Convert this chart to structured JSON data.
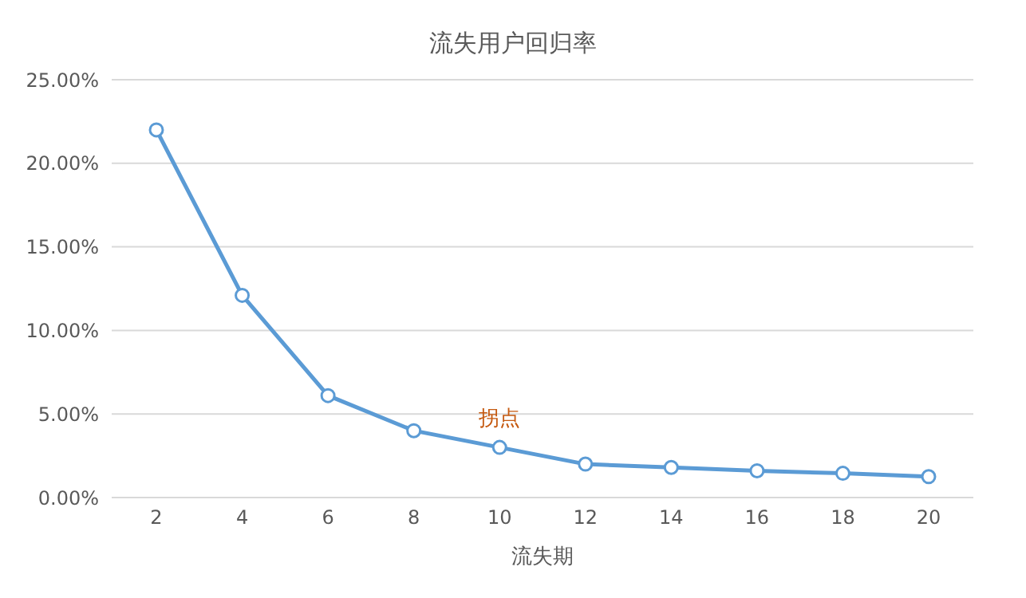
{
  "chart_data": {
    "type": "line",
    "title": "流失用户回归率",
    "xlabel": "流失期",
    "categories": [
      "2",
      "4",
      "6",
      "8",
      "10",
      "12",
      "14",
      "16",
      "18",
      "20"
    ],
    "series": [
      {
        "color": "#5b9bd5",
        "values": [
          22.0,
          12.1,
          6.1,
          4.0,
          3.0,
          2.0,
          1.8,
          1.6,
          1.45,
          1.25
        ]
      }
    ],
    "ylim": [
      0,
      25
    ],
    "yticks": [
      {
        "value": 0,
        "label": "0.00%"
      },
      {
        "value": 5,
        "label": "5.00%"
      },
      {
        "value": 10,
        "label": "10.00%"
      },
      {
        "value": 15,
        "label": "15.00%"
      },
      {
        "value": 20,
        "label": "20.00%"
      },
      {
        "value": 25,
        "label": "25.00%"
      }
    ],
    "grid": "y",
    "marker": "circle",
    "line_style": "solid",
    "legend": false,
    "annotations": [
      {
        "text": "拐点",
        "x": "10",
        "y": 3.0
      }
    ]
  }
}
